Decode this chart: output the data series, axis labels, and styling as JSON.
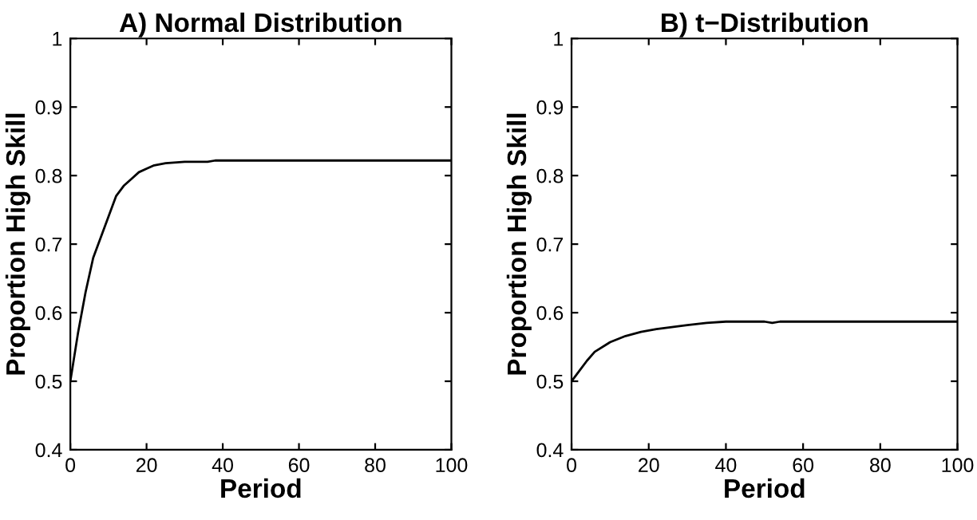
{
  "chart_data": [
    {
      "type": "line",
      "title": "A) Normal Distribution",
      "xlabel": "Period",
      "ylabel": "Proportion High Skill",
      "xlim": [
        0,
        100
      ],
      "ylim": [
        0.4,
        1
      ],
      "xticks": [
        0,
        20,
        40,
        60,
        80,
        100
      ],
      "yticks": [
        0.4,
        0.5,
        0.6,
        0.7,
        0.8,
        0.9,
        1
      ],
      "grid": false,
      "legend": false,
      "series": [
        {
          "color": "#000000",
          "x": [
            0,
            2,
            4,
            6,
            8,
            10,
            12,
            14,
            16,
            18,
            20,
            22,
            25,
            30,
            36,
            38,
            100
          ],
          "values": [
            0.5,
            0.57,
            0.63,
            0.68,
            0.71,
            0.74,
            0.77,
            0.785,
            0.795,
            0.805,
            0.81,
            0.815,
            0.818,
            0.82,
            0.82,
            0.822,
            0.822
          ]
        }
      ]
    },
    {
      "type": "line",
      "title": "B) t−Distribution",
      "xlabel": "Period",
      "ylabel": "Proportion High Skill",
      "xlim": [
        0,
        100
      ],
      "ylim": [
        0.4,
        1
      ],
      "xticks": [
        0,
        20,
        40,
        60,
        80,
        100
      ],
      "yticks": [
        0.4,
        0.5,
        0.6,
        0.7,
        0.8,
        0.9,
        1
      ],
      "grid": false,
      "legend": false,
      "series": [
        {
          "color": "#000000",
          "x": [
            0,
            2,
            4,
            6,
            10,
            14,
            18,
            22,
            26,
            30,
            35,
            40,
            50,
            52,
            54,
            100
          ],
          "values": [
            0.5,
            0.515,
            0.53,
            0.543,
            0.557,
            0.566,
            0.572,
            0.576,
            0.579,
            0.582,
            0.585,
            0.587,
            0.587,
            0.585,
            0.587,
            0.587
          ]
        }
      ]
    }
  ]
}
